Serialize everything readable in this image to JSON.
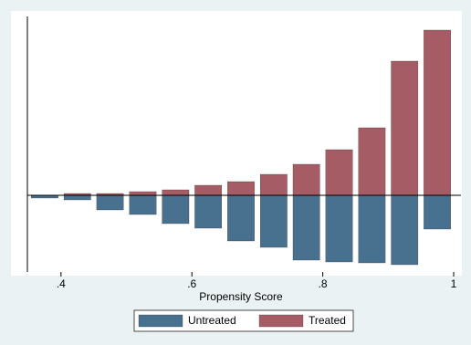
{
  "chart_data": {
    "type": "histogram",
    "xlabel": "Propensity Score",
    "bins": [
      0.35,
      0.4,
      0.45,
      0.5,
      0.55,
      0.6,
      0.65,
      0.7,
      0.75,
      0.8,
      0.85,
      0.9,
      0.95,
      1.0
    ],
    "series": [
      {
        "name": "Untreated",
        "color": "#48708f",
        "values": [
          -3,
          -5,
          -16,
          -21,
          -31,
          -36,
          -50,
          -57,
          -71,
          -73,
          -74,
          -76,
          -37
        ]
      },
      {
        "name": "Treated",
        "color": "#a65c64",
        "values": [
          0,
          2,
          2,
          4,
          6,
          11,
          15,
          23,
          34,
          50,
          74,
          147,
          181
        ]
      }
    ],
    "xlim": [
      0.35,
      1.0
    ],
    "ylim": [
      -84,
      196
    ],
    "xticks": [
      {
        "value": 0.4,
        "label": ".4"
      },
      {
        "value": 0.6,
        "label": ".6"
      },
      {
        "value": 0.8,
        "label": ".8"
      },
      1
    ]
  }
}
